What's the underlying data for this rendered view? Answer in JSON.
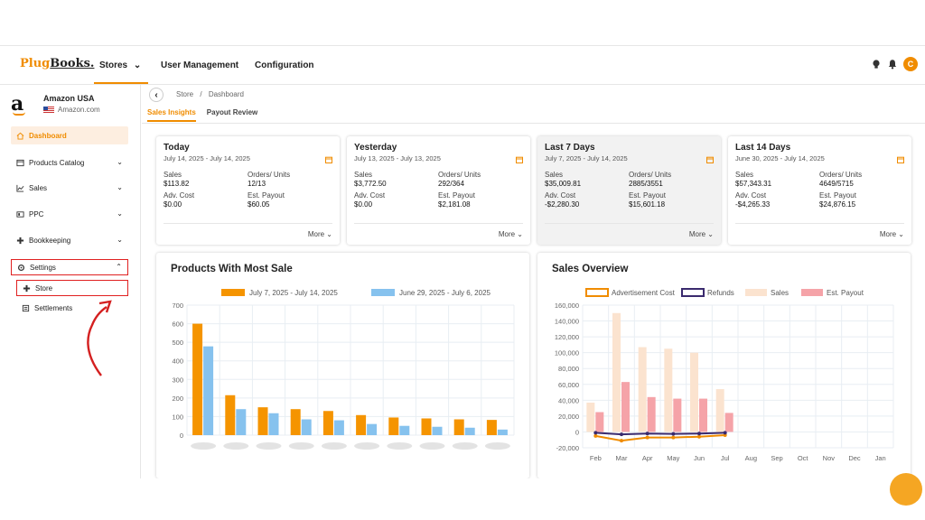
{
  "app": {
    "logo_part1": "Plug",
    "logo_part2": "Books.",
    "avatar_initial": "C"
  },
  "topnav": {
    "stores": "Stores",
    "user_management": "User Management",
    "configuration": "Configuration"
  },
  "store": {
    "name": "Amazon USA",
    "marketplace": "Amazon.com"
  },
  "sidebar": {
    "dashboard": "Dashboard",
    "products_catalog": "Products Catalog",
    "sales": "Sales",
    "ppc": "PPC",
    "bookkeeping": "Bookkeeping",
    "settings": "Settings",
    "store": "Store",
    "settlements": "Settlements"
  },
  "breadcrumb": {
    "store": "Store",
    "separator": "/",
    "dashboard": "Dashboard"
  },
  "tabs": {
    "sales_insights": "Sales Insights",
    "payout_review": "Payout Review"
  },
  "kpis": [
    {
      "title": "Today",
      "range": "July 14, 2025 - July 14, 2025",
      "sales_label": "Sales",
      "sales": "$113.82",
      "orders_label": "Orders/ Units",
      "orders": "12/13",
      "adv_label": "Adv. Cost",
      "adv": "$0.00",
      "payout_label": "Est. Payout",
      "payout": "$60.05",
      "more": "More"
    },
    {
      "title": "Yesterday",
      "range": "July 13, 2025 - July 13, 2025",
      "sales_label": "Sales",
      "sales": "$3,772.50",
      "orders_label": "Orders/ Units",
      "orders": "292/364",
      "adv_label": "Adv. Cost",
      "adv": "$0.00",
      "payout_label": "Est. Payout",
      "payout": "$2,181.08",
      "more": "More"
    },
    {
      "title": "Last 7 Days",
      "range": "July 7, 2025 - July 14, 2025",
      "sales_label": "Sales",
      "sales": "$35,009.81",
      "orders_label": "Orders/ Units",
      "orders": "2885/3551",
      "adv_label": "Adv. Cost",
      "adv": "-$2,280.30",
      "payout_label": "Est. Payout",
      "payout": "$15,601.18",
      "more": "More"
    },
    {
      "title": "Last 14 Days",
      "range": "June 30, 2025 - July 14, 2025",
      "sales_label": "Sales",
      "sales": "$57,343.31",
      "orders_label": "Orders/ Units",
      "orders": "4649/5715",
      "adv_label": "Adv. Cost",
      "adv": "-$4,265.33",
      "payout_label": "Est. Payout",
      "payout": "$24,876.15",
      "more": "More"
    }
  ],
  "panels": {
    "products_title": "Products With Most Sale",
    "overview_title": "Sales Overview"
  },
  "chart_data": [
    {
      "type": "bar",
      "title": "Products With Most Sale",
      "ylim": [
        0,
        700
      ],
      "yticks": [
        "0",
        "100",
        "200",
        "300",
        "400",
        "500",
        "600",
        "700"
      ],
      "legend_placement": "top",
      "grid": true,
      "categories": [
        "",
        "",
        "",
        "",
        "",
        "",
        "",
        "",
        "",
        ""
      ],
      "series": [
        {
          "name": "July 7, 2025 - July 14, 2025",
          "color": "#f59400",
          "values": [
            600,
            215,
            150,
            140,
            130,
            108,
            95,
            90,
            85,
            82
          ]
        },
        {
          "name": "June 29, 2025 - July 6, 2025",
          "color": "#86c2ee",
          "values": [
            478,
            140,
            118,
            85,
            80,
            60,
            50,
            45,
            40,
            30
          ]
        }
      ]
    },
    {
      "type": "bar",
      "title": "Sales Overview",
      "ylim": [
        -20000,
        160000
      ],
      "yticks": [
        "-20,000",
        "0",
        "20,000",
        "40,000",
        "60,000",
        "80,000",
        "100,000",
        "120,000",
        "140,000",
        "160,000"
      ],
      "legend_placement": "top",
      "grid": true,
      "categories": [
        "Feb",
        "Mar",
        "Apr",
        "May",
        "Jun",
        "Jul",
        "Aug",
        "Sep",
        "Oct",
        "Nov",
        "Dec",
        "Jan"
      ],
      "series": [
        {
          "name": "Advertisement Cost",
          "kind": "line",
          "color": "#f08c00",
          "values": [
            -5000,
            -11000,
            -7000,
            -7000,
            -6000,
            -4000,
            null,
            null,
            null,
            null,
            null,
            null
          ]
        },
        {
          "name": "Refunds",
          "kind": "line",
          "color": "#3a2a6e",
          "values": [
            -1000,
            -3000,
            -2000,
            -2500,
            -2000,
            -1000,
            null,
            null,
            null,
            null,
            null,
            null
          ]
        },
        {
          "name": "Sales",
          "kind": "bar",
          "color": "#fbe3cf",
          "values": [
            37000,
            150000,
            107000,
            105000,
            100000,
            54000,
            null,
            null,
            null,
            null,
            null,
            null
          ]
        },
        {
          "name": "Est. Payout",
          "kind": "bar",
          "color": "#f5a3a8",
          "values": [
            25000,
            63000,
            44000,
            42000,
            42000,
            24000,
            null,
            null,
            null,
            null,
            null,
            null
          ]
        }
      ]
    }
  ]
}
